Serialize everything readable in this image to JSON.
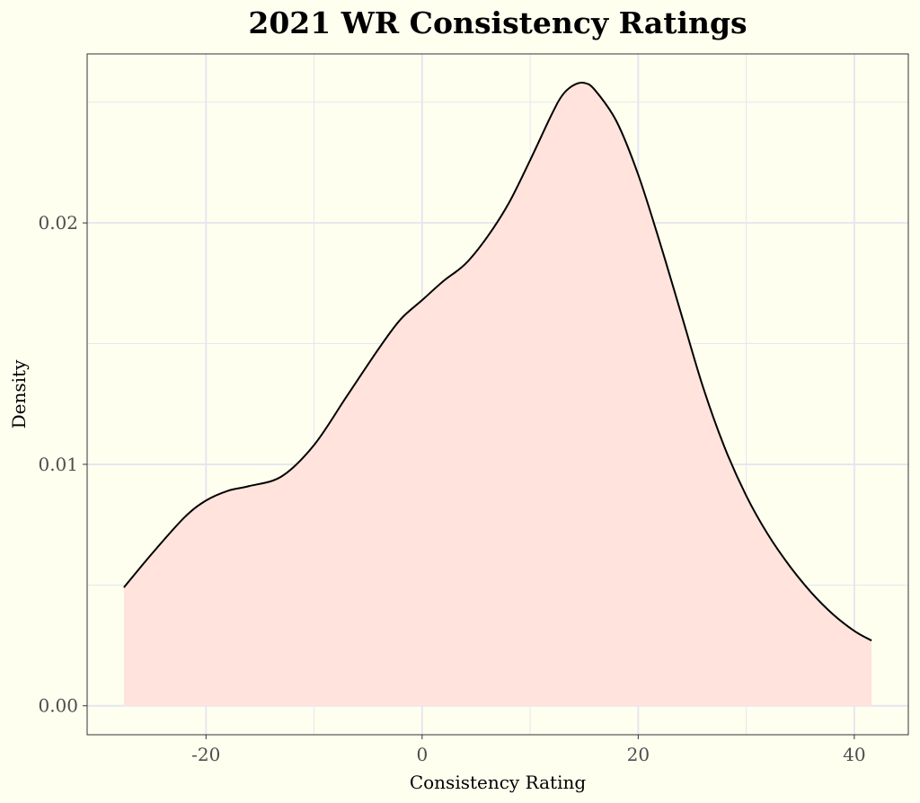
{
  "chart_data": {
    "type": "area",
    "title": "2021 WR Consistency Ratings",
    "xlabel": "Consistency Rating",
    "ylabel": "Density",
    "xlim": [
      -31,
      45
    ],
    "ylim": [
      -0.0012,
      0.027
    ],
    "x_ticks": [
      -20,
      0,
      20,
      40
    ],
    "x_tick_labels": [
      "-20",
      "0",
      "20",
      "40"
    ],
    "x_minor_ticks": [
      -10,
      10,
      30
    ],
    "y_ticks": [
      0.0,
      0.01,
      0.02
    ],
    "y_tick_labels": [
      "0.00",
      "0.01",
      "0.02"
    ],
    "y_minor_ticks": [
      0.005,
      0.015,
      0.025
    ],
    "grid": true,
    "legend": "none",
    "colors": {
      "background": "#fffff0",
      "fill": "#ffe3dc",
      "line": "#000000",
      "grid": "#e6e6f0",
      "border": "#333333"
    },
    "series": [
      {
        "name": "density",
        "x": [
          -27.6,
          -25,
          -22,
          -20,
          -18,
          -16,
          -13,
          -10,
          -7,
          -4,
          -2,
          0,
          2,
          4,
          6,
          8,
          10,
          12,
          13,
          14,
          15,
          16,
          18,
          20,
          22,
          24,
          26,
          28,
          30,
          32,
          34,
          36,
          38,
          40,
          41.6
        ],
        "y": [
          0.0049,
          0.0063,
          0.0078,
          0.0085,
          0.0089,
          0.0091,
          0.0095,
          0.0108,
          0.0128,
          0.0148,
          0.016,
          0.0168,
          0.0176,
          0.0183,
          0.0194,
          0.0208,
          0.0226,
          0.0245,
          0.0253,
          0.0257,
          0.0258,
          0.0255,
          0.0242,
          0.022,
          0.0192,
          0.0162,
          0.0132,
          0.0107,
          0.0087,
          0.0071,
          0.0058,
          0.0047,
          0.0038,
          0.0031,
          0.0027
        ]
      }
    ]
  }
}
